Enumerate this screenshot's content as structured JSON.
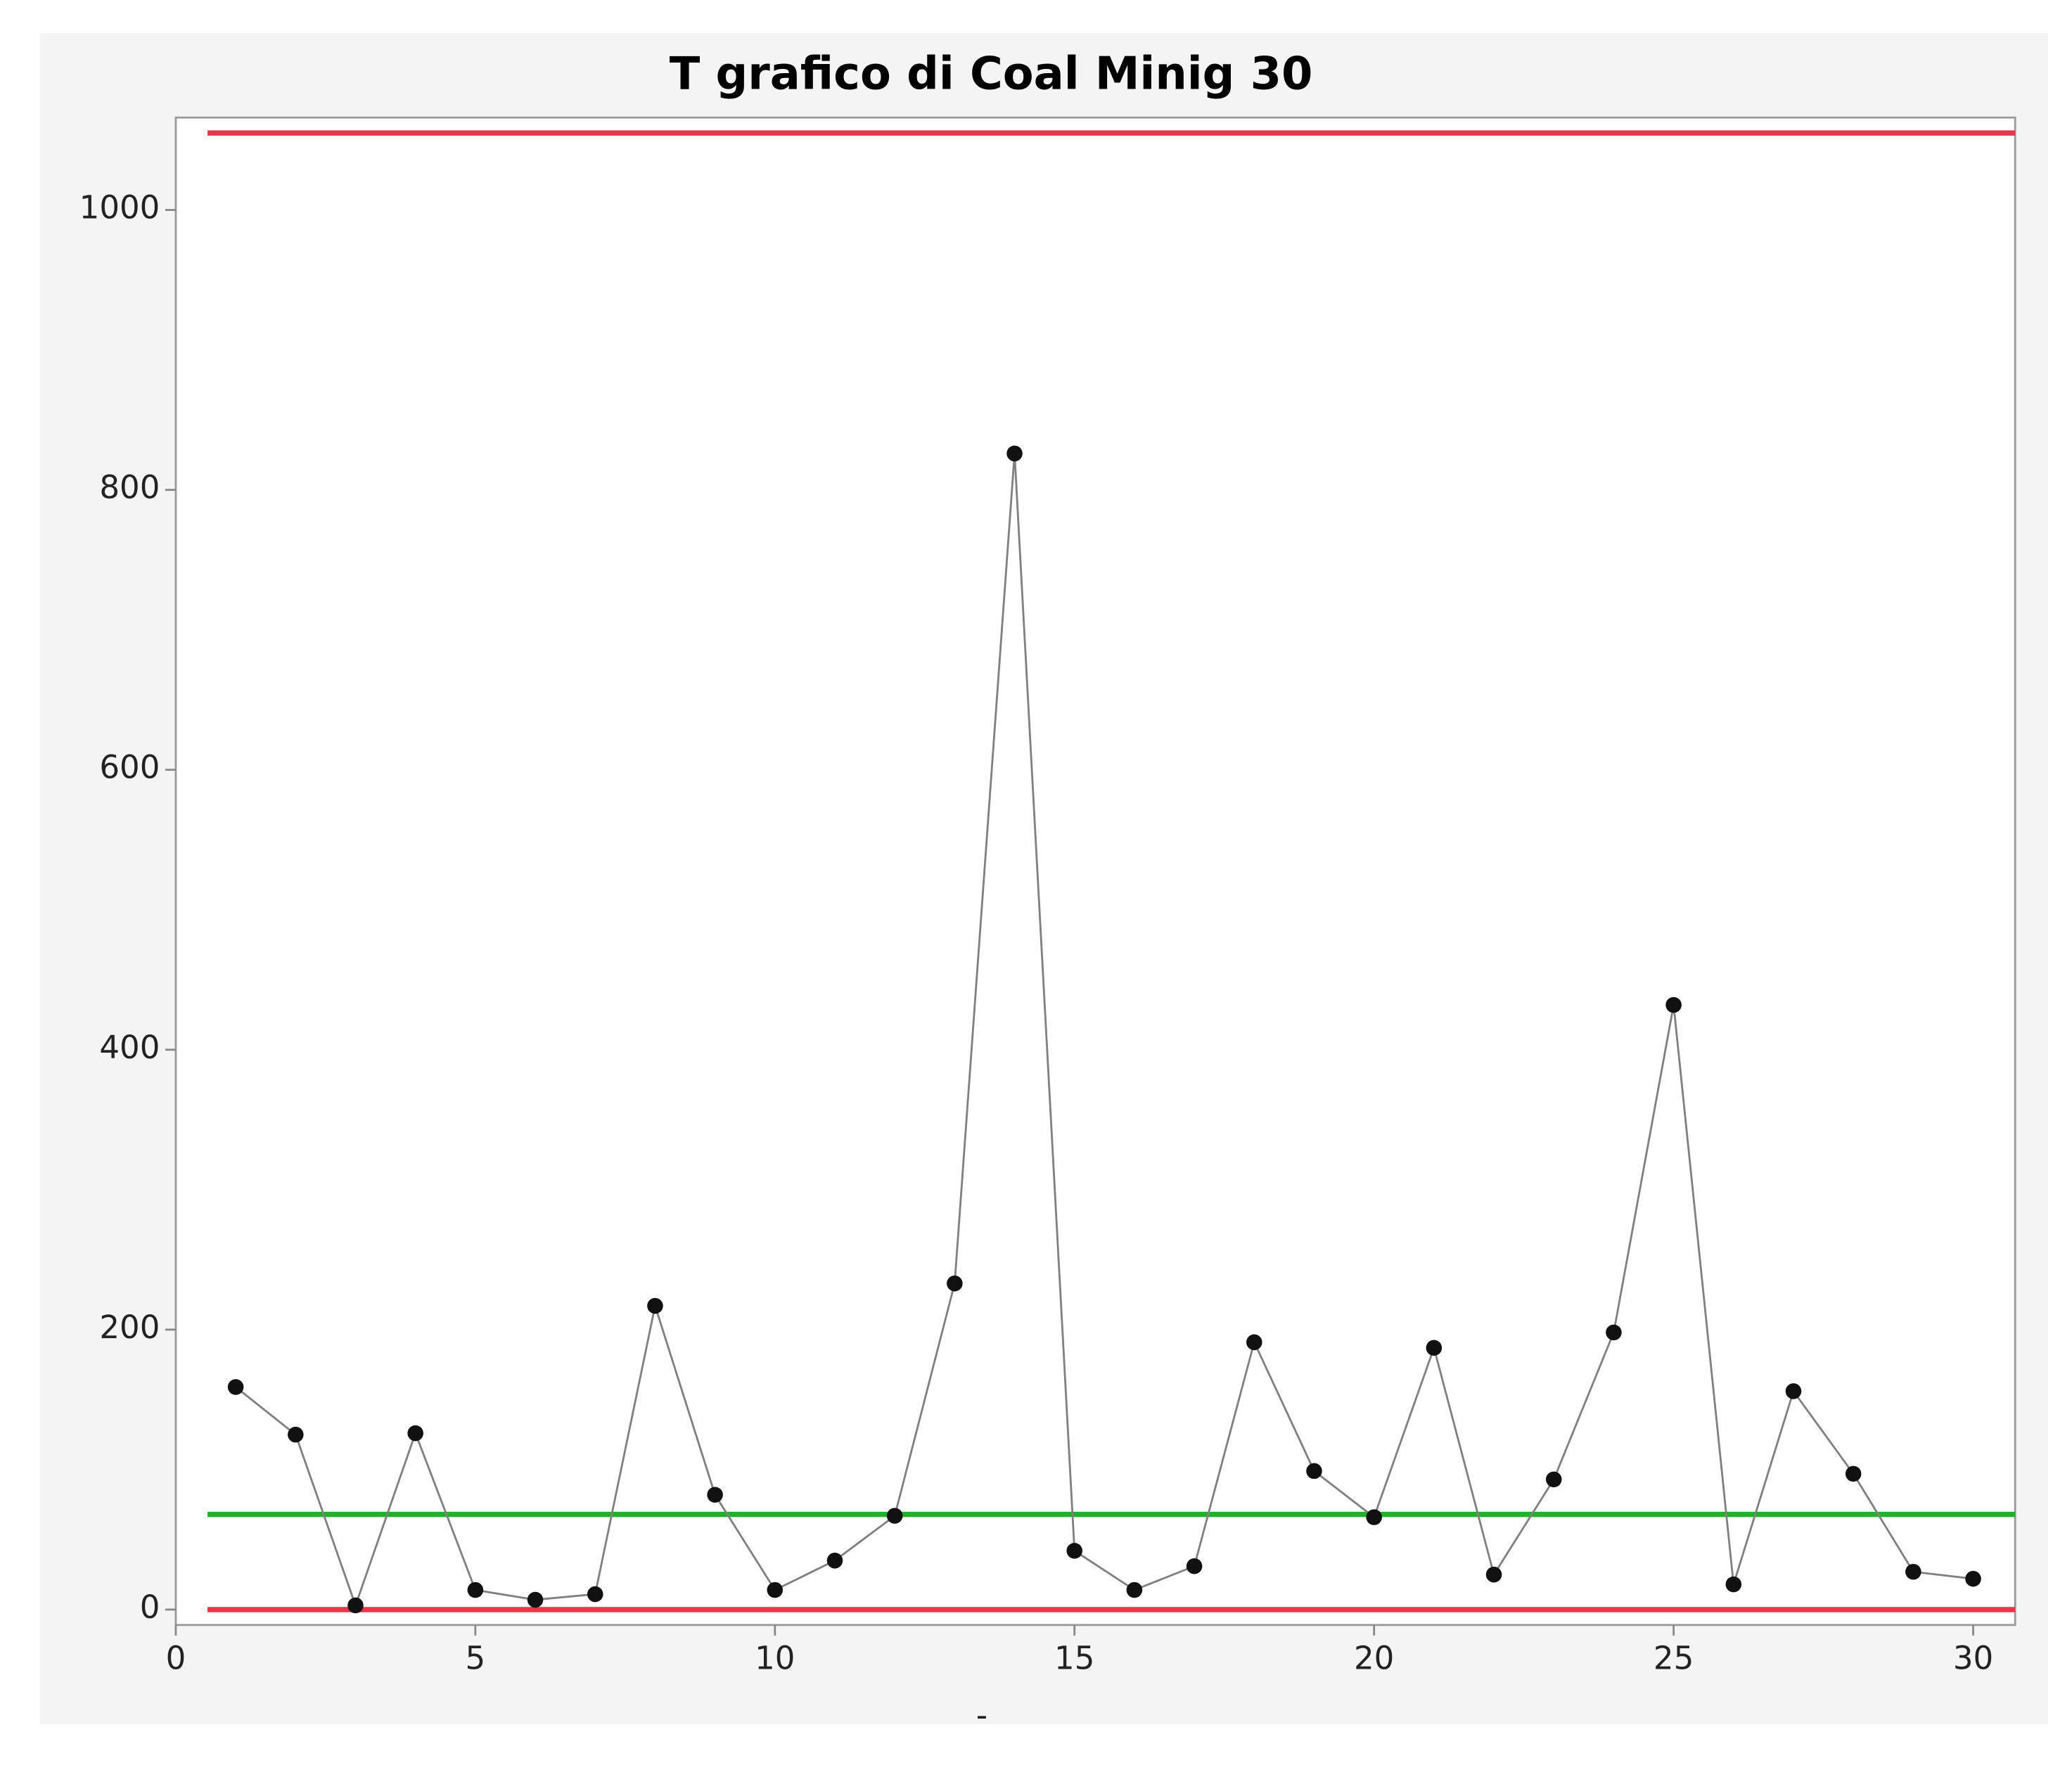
{
  "chart_data": {
    "type": "line",
    "title": "T grafico di Coal Minig 30",
    "x_label": "-",
    "x": [
      1,
      2,
      3,
      4,
      5,
      6,
      7,
      8,
      9,
      10,
      11,
      12,
      13,
      14,
      15,
      16,
      17,
      18,
      19,
      20,
      21,
      22,
      23,
      24,
      25,
      26,
      27,
      28,
      29,
      30
    ],
    "values": [
      159,
      125,
      3,
      126,
      14,
      7,
      11,
      217,
      82,
      14,
      35,
      67,
      233,
      826,
      42,
      14,
      31,
      191,
      99,
      66,
      187,
      25,
      93,
      198,
      432,
      18,
      156,
      97,
      27,
      22
    ],
    "color": "#808080",
    "marker_color": "#111111",
    "control_lines": [
      {
        "value": 1055,
        "color": "#e8354a"
      },
      {
        "value": 68,
        "color": "#22b02a"
      },
      {
        "value": 0,
        "color": "#e8354a"
      }
    ],
    "xlim": [
      0,
      30.7
    ],
    "ylim": [
      -11,
      1066
    ],
    "xticks": [
      0,
      5,
      10,
      15,
      20,
      25,
      30
    ],
    "yticks": [
      0,
      200,
      400,
      600,
      800,
      1000
    ],
    "grid": false
  }
}
